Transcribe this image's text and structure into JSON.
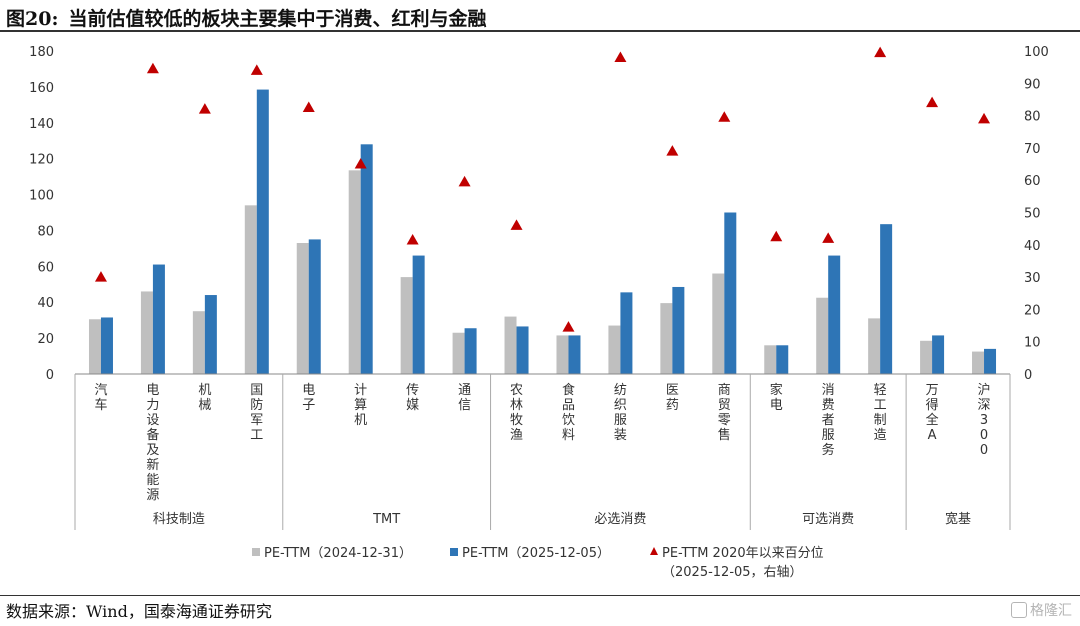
{
  "header": {
    "figure_number": "图20:",
    "title": "当前估值较低的板块主要集中于消费、红利与金融"
  },
  "footer": {
    "source": "数据来源：Wind，国泰海通证券研究",
    "watermark": "格隆汇"
  },
  "chart_data": {
    "type": "bar",
    "categories": [
      "汽车",
      "电力设备及新能源",
      "机械",
      "国防军工",
      "电子",
      "计算机",
      "传媒",
      "通信",
      "农林牧渔",
      "食品饮料",
      "纺织服装",
      "医药",
      "商贸零售",
      "家电",
      "消费者服务",
      "轻工制造",
      "万得全A",
      "沪深300"
    ],
    "groups": [
      {
        "name": "科技制造",
        "count": 4
      },
      {
        "name": "TMT",
        "count": 4
      },
      {
        "name": "必选消费",
        "count": 5
      },
      {
        "name": "可选消费",
        "count": 3
      },
      {
        "name": "宽基",
        "count": 2
      }
    ],
    "series": [
      {
        "name": "PE-TTM（2024-12-31）",
        "type": "bar",
        "axis": "left",
        "color": "#bfbfbf",
        "values": [
          30.5,
          46,
          35,
          94,
          73,
          113.5,
          54,
          23,
          32,
          21.5,
          27,
          39.5,
          56,
          16,
          42.5,
          31,
          18.5,
          12.5
        ]
      },
      {
        "name": "PE-TTM（2025-12-05）",
        "type": "bar",
        "axis": "left",
        "color": "#2e75b6",
        "values": [
          31.5,
          61,
          44,
          158.5,
          75,
          128,
          66,
          25.5,
          26.5,
          21.5,
          45.5,
          48.5,
          90,
          16,
          66,
          83.5,
          21.5,
          14
        ]
      },
      {
        "name": "PE-TTM 2020年以来百分位（2025-12-05，右轴）",
        "type": "scatter",
        "axis": "right",
        "color": "#c00000",
        "values": [
          30,
          94.5,
          82,
          94,
          82.5,
          65,
          41.5,
          59.5,
          46,
          14.5,
          98,
          69,
          79.5,
          42.5,
          42,
          99.5,
          84,
          79
        ]
      }
    ],
    "legend": [
      {
        "label": "PE-TTM（2024-12-31）",
        "color": "#bfbfbf",
        "marker": "square"
      },
      {
        "label": "PE-TTM（2025-12-05）",
        "color": "#2e75b6",
        "marker": "square"
      },
      {
        "label": "PE-TTM 2020年以来百分位",
        "label_line2": "（2025-12-05，右轴）",
        "color": "#c00000",
        "marker": "triangle"
      }
    ],
    "legend_position": "bottom",
    "ylim": [
      0,
      180
    ],
    "yticks": [
      0,
      20,
      40,
      60,
      80,
      100,
      120,
      140,
      160,
      180
    ],
    "y2lim": [
      0,
      100
    ],
    "y2ticks": [
      0,
      10,
      20,
      30,
      40,
      50,
      60,
      70,
      80,
      90,
      100
    ],
    "grid": false
  }
}
